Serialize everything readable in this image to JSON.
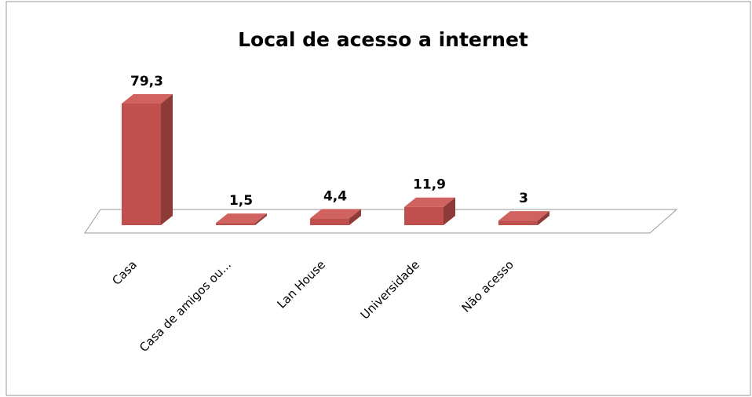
{
  "chart_data": {
    "type": "bar3d",
    "title": "Local de acesso a internet",
    "categories": [
      "Casa",
      "Casa de amigos ou...",
      "Lan House",
      "Universidade",
      "Não acesso"
    ],
    "values": [
      79.3,
      1.5,
      4.4,
      11.9,
      3
    ],
    "value_labels": [
      "79,3",
      "1,5",
      "4,4",
      "11,9",
      "3"
    ],
    "color": "#c0504d"
  }
}
